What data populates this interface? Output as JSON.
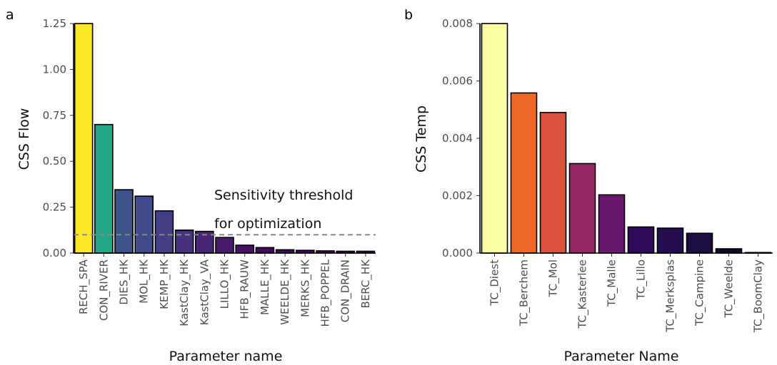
{
  "chart_data": [
    {
      "panel": "a",
      "type": "bar",
      "xlabel": "Parameter name",
      "ylabel": "CSS Flow",
      "ylim": [
        0,
        1.25
      ],
      "yticks": [
        "0.00",
        "0.25",
        "0.50",
        "0.75",
        "1.00",
        "1.25"
      ],
      "categories": [
        "RECH_SPA",
        "CON_RIVER",
        "DIES_HK",
        "MOL_HK",
        "KEMP_HK",
        "KastClay_HK",
        "KastClay_VA",
        "LILLO_HK",
        "HFB_RAUW",
        "MALLE_HK",
        "WEELDE_HK",
        "MERKS_HK",
        "HFB_POPPEL",
        "CON_DRAIN",
        "BERC_HK"
      ],
      "values": [
        1.25,
        0.7,
        0.345,
        0.31,
        0.23,
        0.125,
        0.118,
        0.085,
        0.043,
        0.03,
        0.018,
        0.015,
        0.012,
        0.01,
        0.01
      ],
      "colors": [
        "#fde725",
        "#22a884",
        "#3b528b",
        "#3e4a89",
        "#433e85",
        "#46327e",
        "#482576",
        "#481a6c",
        "#471063",
        "#46085c",
        "#450559",
        "#440256",
        "#440154",
        "#440154",
        "#440154"
      ],
      "threshold": 0.1,
      "annotation": [
        "Sensitivity threshold",
        "for optimization"
      ]
    },
    {
      "panel": "b",
      "type": "bar",
      "xlabel": "Parameter Name",
      "ylabel": "CSS Temp",
      "ylim": [
        0,
        0.008
      ],
      "yticks": [
        "0.000",
        "0.002",
        "0.004",
        "0.006",
        "0.008"
      ],
      "categories": [
        "TC_Diest",
        "TC_Berchem",
        "TC_Mol",
        "TC_Kasterlee",
        "TC_Malle",
        "TC_Lillo",
        "TC_Merksplas",
        "TC_Campine",
        "TC_Weelde",
        "TC_BoomClay"
      ],
      "values": [
        0.008,
        0.00558,
        0.0049,
        0.00312,
        0.00203,
        0.00091,
        0.00087,
        0.00069,
        0.00015,
        2e-05
      ],
      "colors": [
        "#fcffa4",
        "#ed6925",
        "#dd513a",
        "#932667",
        "#6a176e",
        "#2f0a5b",
        "#250b50",
        "#1b0c41",
        "#0e0826",
        "#000004"
      ]
    }
  ]
}
